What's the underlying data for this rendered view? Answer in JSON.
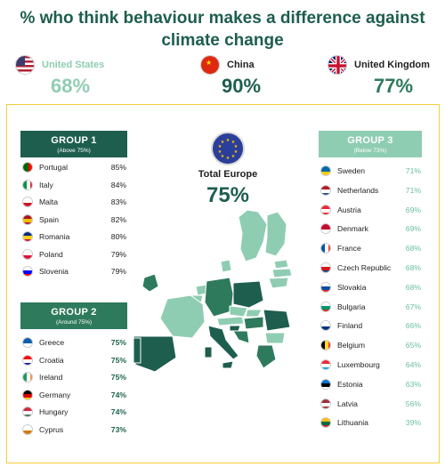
{
  "title_line1": "% who think behaviour makes a difference against",
  "title_line2": "climate change",
  "colors": {
    "title": "#1e5e4e",
    "group1": "#1e5e4e",
    "group2": "#2e7a5c",
    "group3": "#8fcdb2",
    "dark_green": "#1e5e4e",
    "light_green": "#6bbfa0",
    "frame": "#f2cf3b"
  },
  "top": [
    {
      "name": "United States",
      "pct": "68%",
      "flag": "us-flag",
      "color": "#8fcdb2"
    },
    {
      "name": "China",
      "pct": "90%",
      "flag": "china-flag",
      "color": "#1e5e4e"
    },
    {
      "name": "United Kingdom",
      "pct": "77%",
      "flag": "uk-flag",
      "color": "#2e7a5c"
    }
  ],
  "total_europe": {
    "label": "Total Europe",
    "pct": "75%",
    "icon": "eu-flag-icon"
  },
  "chart_data": {
    "type": "table",
    "title": "% who think behaviour makes a difference against climate change",
    "groups": [
      {
        "name": "GROUP 1",
        "subtitle": "(Above 75%)",
        "rows": [
          {
            "country": "Portugal",
            "value": "85%"
          },
          {
            "country": "Italy",
            "value": "84%"
          },
          {
            "country": "Malta",
            "value": "83%"
          },
          {
            "country": "Spain",
            "value": "82%"
          },
          {
            "country": "Romania",
            "value": "80%"
          },
          {
            "country": "Poland",
            "value": "79%"
          },
          {
            "country": "Slovenia",
            "value": "79%"
          }
        ]
      },
      {
        "name": "GROUP 2",
        "subtitle": "(Around 75%)",
        "rows": [
          {
            "country": "Greece",
            "value": "75%"
          },
          {
            "country": "Croatia",
            "value": "75%"
          },
          {
            "country": "Ireland",
            "value": "75%"
          },
          {
            "country": "Germany",
            "value": "74%"
          },
          {
            "country": "Hungary",
            "value": "74%"
          },
          {
            "country": "Cyprus",
            "value": "73%"
          }
        ]
      },
      {
        "name": "GROUP 3",
        "subtitle": "(Below 73%)",
        "rows": [
          {
            "country": "Sweden",
            "value": "71%"
          },
          {
            "country": "Netherlands",
            "value": "71%"
          },
          {
            "country": "Austria",
            "value": "69%"
          },
          {
            "country": "Denmark",
            "value": "69%"
          },
          {
            "country": "France",
            "value": "68%"
          },
          {
            "country": "Czech Republic",
            "value": "68%"
          },
          {
            "country": "Slovakia",
            "value": "68%"
          },
          {
            "country": "Bulgaria",
            "value": "67%"
          },
          {
            "country": "Finland",
            "value": "66%"
          },
          {
            "country": "Belgium",
            "value": "65%"
          },
          {
            "country": "Luxembourg",
            "value": "64%"
          },
          {
            "country": "Estonia",
            "value": "63%"
          },
          {
            "country": "Latvia",
            "value": "56%"
          },
          {
            "country": "Lithuania",
            "value": "39%"
          }
        ]
      }
    ]
  }
}
